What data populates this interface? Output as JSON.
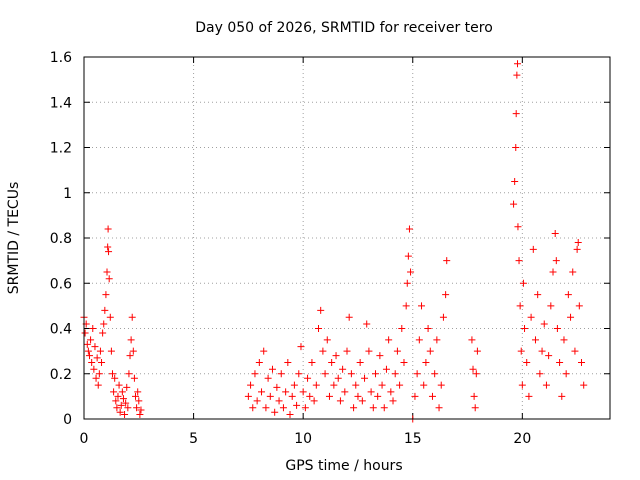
{
  "chart_data": {
    "type": "scatter",
    "title": "Day 050 of 2026, SRMTID for receiver tero",
    "xlabel": "GPS time / hours",
    "ylabel": "SRMTID / TECUs",
    "xlim": [
      0,
      24
    ],
    "ylim": [
      0,
      1.6
    ],
    "xticks": [
      0,
      5,
      10,
      15,
      20
    ],
    "xtick_labels": [
      "0",
      "5",
      "10",
      "15",
      "20"
    ],
    "yticks": [
      0,
      0.2,
      0.4,
      0.6,
      0.8,
      1.0,
      1.2,
      1.4,
      1.6
    ],
    "ytick_labels": [
      "0",
      "0.2",
      "0.4",
      "0.6",
      "0.8",
      "1",
      "1.2",
      "1.4",
      "1.6"
    ],
    "grid": true,
    "marker": "+",
    "series": [
      {
        "name": "SRMTID",
        "color": "#ff0000",
        "points": [
          [
            0.0,
            0.45
          ],
          [
            0.05,
            0.38
          ],
          [
            0.1,
            0.42
          ],
          [
            0.15,
            0.33
          ],
          [
            0.2,
            0.3
          ],
          [
            0.25,
            0.28
          ],
          [
            0.3,
            0.35
          ],
          [
            0.35,
            0.25
          ],
          [
            0.4,
            0.4
          ],
          [
            0.45,
            0.22
          ],
          [
            0.5,
            0.32
          ],
          [
            0.55,
            0.18
          ],
          [
            0.6,
            0.27
          ],
          [
            0.65,
            0.15
          ],
          [
            0.7,
            0.2
          ],
          [
            0.75,
            0.3
          ],
          [
            0.8,
            0.25
          ],
          [
            0.85,
            0.38
          ],
          [
            0.9,
            0.42
          ],
          [
            0.95,
            0.48
          ],
          [
            1.0,
            0.55
          ],
          [
            1.05,
            0.65
          ],
          [
            1.08,
            0.76
          ],
          [
            1.1,
            0.84
          ],
          [
            1.12,
            0.74
          ],
          [
            1.15,
            0.62
          ],
          [
            1.2,
            0.45
          ],
          [
            1.25,
            0.3
          ],
          [
            1.3,
            0.2
          ],
          [
            1.35,
            0.12
          ],
          [
            1.4,
            0.18
          ],
          [
            1.45,
            0.08
          ],
          [
            1.5,
            0.05
          ],
          [
            1.55,
            0.1
          ],
          [
            1.6,
            0.15
          ],
          [
            1.65,
            0.03
          ],
          [
            1.7,
            0.06
          ],
          [
            1.75,
            0.12
          ],
          [
            1.8,
            0.09
          ],
          [
            1.85,
            0.02
          ],
          [
            1.9,
            0.07
          ],
          [
            1.95,
            0.14
          ],
          [
            2.0,
            0.05
          ],
          [
            2.05,
            0.2
          ],
          [
            2.1,
            0.28
          ],
          [
            2.15,
            0.35
          ],
          [
            2.2,
            0.45
          ],
          [
            2.25,
            0.3
          ],
          [
            2.3,
            0.18
          ],
          [
            2.35,
            0.1
          ],
          [
            2.4,
            0.05
          ],
          [
            2.45,
            0.12
          ],
          [
            2.5,
            0.08
          ],
          [
            2.55,
            0.02
          ],
          [
            2.6,
            0.04
          ],
          [
            7.5,
            0.1
          ],
          [
            7.6,
            0.15
          ],
          [
            7.7,
            0.05
          ],
          [
            7.8,
            0.2
          ],
          [
            7.9,
            0.08
          ],
          [
            8.0,
            0.25
          ],
          [
            8.1,
            0.12
          ],
          [
            8.2,
            0.3
          ],
          [
            8.3,
            0.05
          ],
          [
            8.4,
            0.18
          ],
          [
            8.5,
            0.1
          ],
          [
            8.6,
            0.22
          ],
          [
            8.7,
            0.03
          ],
          [
            8.8,
            0.14
          ],
          [
            8.9,
            0.08
          ],
          [
            9.0,
            0.2
          ],
          [
            9.1,
            0.05
          ],
          [
            9.2,
            0.12
          ],
          [
            9.3,
            0.25
          ],
          [
            9.4,
            0.02
          ],
          [
            9.5,
            0.1
          ],
          [
            9.6,
            0.15
          ],
          [
            9.7,
            0.06
          ],
          [
            9.8,
            0.2
          ],
          [
            9.9,
            0.32
          ],
          [
            10.0,
            0.12
          ],
          [
            10.1,
            0.05
          ],
          [
            10.2,
            0.18
          ],
          [
            10.3,
            0.1
          ],
          [
            10.4,
            0.25
          ],
          [
            10.5,
            0.08
          ],
          [
            10.6,
            0.15
          ],
          [
            10.7,
            0.4
          ],
          [
            10.8,
            0.48
          ],
          [
            10.9,
            0.3
          ],
          [
            11.0,
            0.2
          ],
          [
            11.1,
            0.35
          ],
          [
            11.2,
            0.1
          ],
          [
            11.3,
            0.25
          ],
          [
            11.4,
            0.15
          ],
          [
            11.5,
            0.28
          ],
          [
            11.6,
            0.18
          ],
          [
            11.7,
            0.08
          ],
          [
            11.8,
            0.22
          ],
          [
            11.9,
            0.12
          ],
          [
            12.0,
            0.3
          ],
          [
            12.1,
            0.45
          ],
          [
            12.2,
            0.2
          ],
          [
            12.3,
            0.05
          ],
          [
            12.4,
            0.15
          ],
          [
            12.5,
            0.1
          ],
          [
            12.6,
            0.25
          ],
          [
            12.7,
            0.08
          ],
          [
            12.8,
            0.18
          ],
          [
            12.9,
            0.42
          ],
          [
            13.0,
            0.3
          ],
          [
            13.1,
            0.12
          ],
          [
            13.2,
            0.05
          ],
          [
            13.3,
            0.2
          ],
          [
            13.4,
            0.1
          ],
          [
            13.5,
            0.28
          ],
          [
            13.6,
            0.15
          ],
          [
            13.7,
            0.05
          ],
          [
            13.8,
            0.22
          ],
          [
            13.9,
            0.35
          ],
          [
            14.0,
            0.12
          ],
          [
            14.1,
            0.08
          ],
          [
            14.2,
            0.2
          ],
          [
            14.3,
            0.3
          ],
          [
            14.4,
            0.15
          ],
          [
            14.5,
            0.4
          ],
          [
            14.6,
            0.25
          ],
          [
            14.7,
            0.5
          ],
          [
            14.75,
            0.6
          ],
          [
            14.8,
            0.72
          ],
          [
            14.85,
            0.84
          ],
          [
            14.9,
            0.65
          ],
          [
            15.0,
            0.0
          ],
          [
            15.1,
            0.1
          ],
          [
            15.2,
            0.2
          ],
          [
            15.3,
            0.35
          ],
          [
            15.4,
            0.5
          ],
          [
            15.5,
            0.15
          ],
          [
            15.6,
            0.25
          ],
          [
            15.7,
            0.4
          ],
          [
            15.8,
            0.3
          ],
          [
            15.9,
            0.1
          ],
          [
            16.0,
            0.2
          ],
          [
            16.1,
            0.35
          ],
          [
            16.2,
            0.05
          ],
          [
            16.3,
            0.15
          ],
          [
            16.4,
            0.45
          ],
          [
            16.5,
            0.55
          ],
          [
            16.55,
            0.7
          ],
          [
            17.7,
            0.35
          ],
          [
            17.75,
            0.22
          ],
          [
            17.8,
            0.1
          ],
          [
            17.85,
            0.05
          ],
          [
            17.9,
            0.2
          ],
          [
            17.95,
            0.3
          ],
          [
            19.6,
            0.95
          ],
          [
            19.65,
            1.05
          ],
          [
            19.7,
            1.2
          ],
          [
            19.72,
            1.35
          ],
          [
            19.75,
            1.52
          ],
          [
            19.78,
            1.57
          ],
          [
            19.8,
            0.85
          ],
          [
            19.85,
            0.7
          ],
          [
            19.9,
            0.5
          ],
          [
            19.95,
            0.3
          ],
          [
            20.0,
            0.15
          ],
          [
            20.05,
            0.6
          ],
          [
            20.1,
            0.4
          ],
          [
            20.2,
            0.25
          ],
          [
            20.3,
            0.1
          ],
          [
            20.4,
            0.45
          ],
          [
            20.5,
            0.75
          ],
          [
            20.6,
            0.35
          ],
          [
            20.7,
            0.55
          ],
          [
            20.8,
            0.2
          ],
          [
            20.9,
            0.3
          ],
          [
            21.0,
            0.42
          ],
          [
            21.1,
            0.15
          ],
          [
            21.2,
            0.28
          ],
          [
            21.3,
            0.5
          ],
          [
            21.4,
            0.65
          ],
          [
            21.5,
            0.82
          ],
          [
            21.55,
            0.7
          ],
          [
            21.6,
            0.4
          ],
          [
            21.7,
            0.25
          ],
          [
            21.8,
            0.1
          ],
          [
            21.9,
            0.35
          ],
          [
            22.0,
            0.2
          ],
          [
            22.1,
            0.55
          ],
          [
            22.2,
            0.45
          ],
          [
            22.3,
            0.65
          ],
          [
            22.4,
            0.3
          ],
          [
            22.5,
            0.75
          ],
          [
            22.55,
            0.78
          ],
          [
            22.6,
            0.5
          ],
          [
            22.7,
            0.25
          ],
          [
            22.8,
            0.15
          ]
        ]
      }
    ]
  }
}
